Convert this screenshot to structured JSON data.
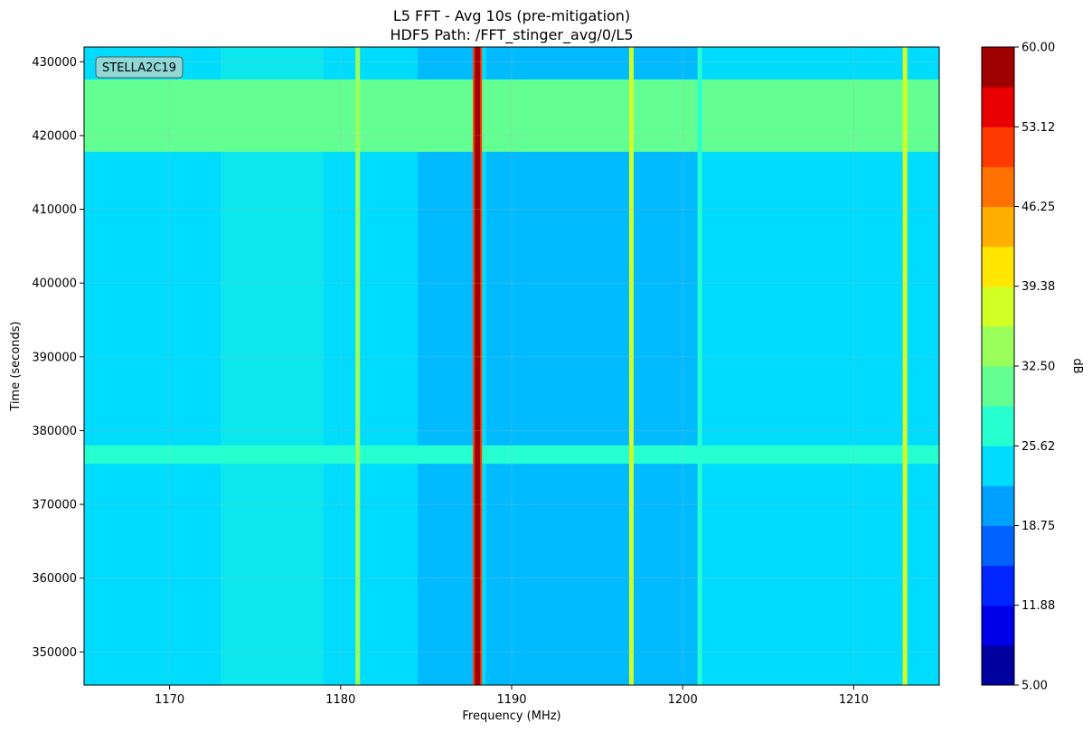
{
  "chart_data": {
    "type": "heatmap",
    "title": "L5 FFT - Avg 10s (pre-mitigation)",
    "subtitle": "HDF5 Path: /FFT_stinger_avg/0/L5",
    "xlabel": "Frequency (MHz)",
    "ylabel": "Time (seconds)",
    "xlim": [
      1165,
      1215
    ],
    "ylim": [
      345500,
      432000
    ],
    "x_ticks": [
      1170,
      1180,
      1190,
      1200,
      1210
    ],
    "y_ticks": [
      350000,
      360000,
      370000,
      380000,
      390000,
      400000,
      410000,
      420000,
      430000
    ],
    "annotation": "STELLA2C19",
    "grid": true,
    "colorbar": {
      "label": "dB",
      "min": 5.0,
      "max": 60.0,
      "tick_values": [
        "5.00",
        "11.88",
        "18.75",
        "25.62",
        "32.50",
        "39.38",
        "46.25",
        "53.12",
        "60.00"
      ],
      "levels": 16,
      "colors": [
        "#00009f",
        "#0000e8",
        "#0025ff",
        "#0062ff",
        "#00a0ff",
        "#00dcfe",
        "#26ffd0",
        "#64ff93",
        "#9bff5b",
        "#d2ff24",
        "#ffe600",
        "#ffaf00",
        "#ff7100",
        "#ff3a00",
        "#e80000",
        "#9f0000"
      ]
    },
    "background_level_db": 25.6,
    "bands": [
      {
        "time_range": [
          417800,
          427600
        ],
        "level_db": 30.5,
        "description": "elevated band"
      },
      {
        "time_range": [
          375500,
          378000
        ],
        "level_db": 29.0,
        "description": "elevated band"
      }
    ],
    "spectral_lines": [
      {
        "frequency_mhz": 1181.0,
        "level_db": 35.0
      },
      {
        "frequency_mhz": 1188.0,
        "level_db": 58.0
      },
      {
        "frequency_mhz": 1197.0,
        "level_db": 37.0
      },
      {
        "frequency_mhz": 1201.0,
        "level_db": 28.0
      },
      {
        "frequency_mhz": 1213.0,
        "level_db": 36.0
      }
    ],
    "low_power_regions": [
      {
        "frequency_range": [
          1184.5,
          1188.0
        ],
        "level_db": 21.0
      },
      {
        "frequency_range": [
          1188.5,
          1196.0
        ],
        "level_db": 21.0
      },
      {
        "frequency_range": [
          1196.0,
          1201.0
        ],
        "level_db": 21.0
      }
    ],
    "elevated_regions": [
      {
        "frequency_range": [
          1173.0,
          1179.0
        ],
        "level_db": 28.0
      }
    ]
  }
}
